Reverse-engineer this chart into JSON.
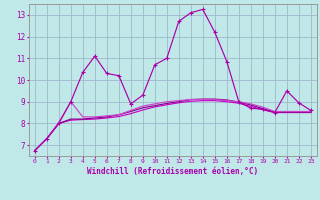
{
  "xlabel": "Windchill (Refroidissement éolien,°C)",
  "xlim": [
    -0.5,
    23.5
  ],
  "ylim": [
    6.5,
    13.5
  ],
  "xticks": [
    0,
    1,
    2,
    3,
    4,
    5,
    6,
    7,
    8,
    9,
    10,
    11,
    12,
    13,
    14,
    15,
    16,
    17,
    18,
    19,
    20,
    21,
    22,
    23
  ],
  "yticks": [
    7,
    8,
    9,
    10,
    11,
    12,
    13
  ],
  "background_color": "#c0e8e8",
  "grid_color": "#a0b8cc",
  "line_color": "#aa00aa",
  "line2_color": "#cc44cc",
  "line3_color": "#880088",
  "line4_color": "#cc00cc",
  "curve1_x": [
    0,
    1,
    2,
    3,
    4,
    5,
    6,
    7,
    8,
    9,
    10,
    11,
    12,
    13,
    14,
    15,
    16,
    17,
    18,
    19,
    20,
    21,
    22,
    23
  ],
  "curve1_y": [
    6.75,
    7.3,
    8.0,
    9.0,
    10.35,
    11.1,
    10.3,
    10.2,
    8.9,
    9.3,
    10.7,
    11.0,
    12.7,
    13.1,
    13.25,
    12.2,
    10.85,
    9.0,
    8.7,
    8.65,
    8.5,
    9.5,
    8.95,
    8.6
  ],
  "curve2_x": [
    0,
    1,
    2,
    3,
    4,
    5,
    6,
    7,
    8,
    9,
    10,
    11,
    12,
    13,
    14,
    15,
    16,
    17,
    18,
    19,
    20,
    21,
    22,
    23
  ],
  "curve2_y": [
    6.75,
    7.3,
    8.05,
    9.0,
    8.3,
    8.3,
    8.35,
    8.4,
    8.6,
    8.8,
    8.9,
    9.0,
    9.05,
    9.1,
    9.1,
    9.1,
    9.05,
    9.0,
    8.9,
    8.75,
    8.55,
    8.55,
    8.55,
    8.55
  ],
  "curve3_x": [
    0,
    1,
    2,
    3,
    4,
    5,
    6,
    7,
    8,
    9,
    10,
    11,
    12,
    13,
    14,
    15,
    16,
    17,
    18,
    19,
    20,
    21,
    22,
    23
  ],
  "curve3_y": [
    6.75,
    7.3,
    8.0,
    8.2,
    8.2,
    8.25,
    8.3,
    8.4,
    8.55,
    8.72,
    8.82,
    8.92,
    9.0,
    9.1,
    9.12,
    9.12,
    9.08,
    8.98,
    8.85,
    8.68,
    8.52,
    8.52,
    8.52,
    8.52
  ],
  "curve4_x": [
    0,
    1,
    2,
    3,
    4,
    5,
    6,
    7,
    8,
    9,
    10,
    11,
    12,
    13,
    14,
    15,
    16,
    17,
    18,
    19,
    20,
    21,
    22,
    23
  ],
  "curve4_y": [
    6.75,
    7.3,
    8.0,
    8.15,
    8.18,
    8.2,
    8.25,
    8.32,
    8.45,
    8.62,
    8.76,
    8.86,
    8.95,
    9.02,
    9.05,
    9.05,
    9.0,
    8.93,
    8.78,
    8.63,
    8.5,
    8.5,
    8.5,
    8.5
  ]
}
